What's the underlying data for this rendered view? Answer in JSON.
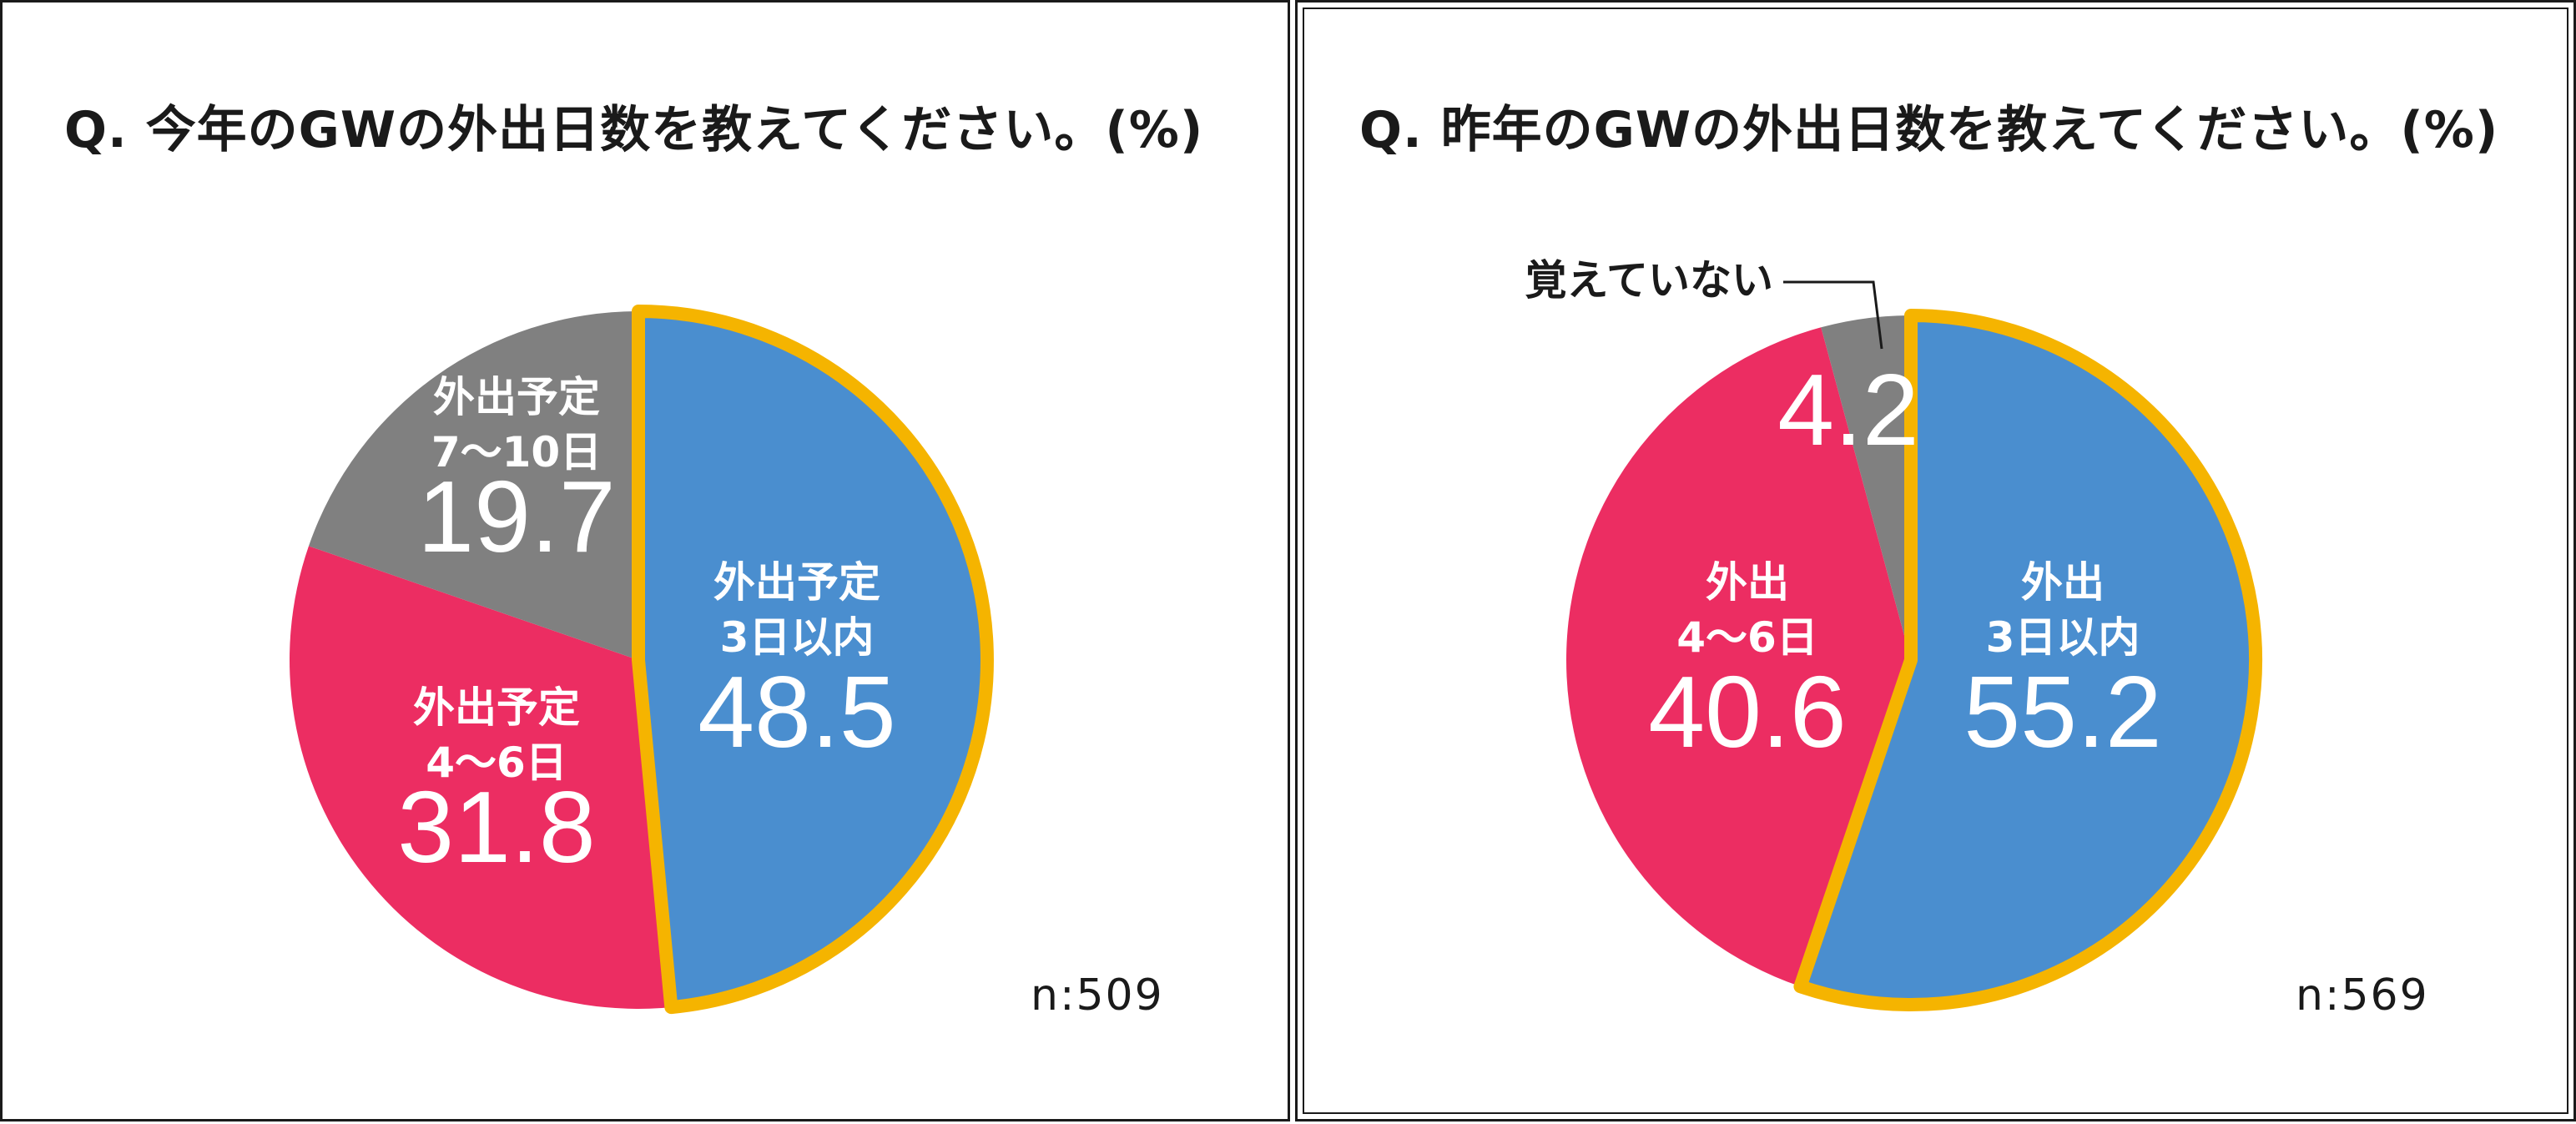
{
  "chart_data": [
    {
      "type": "pie",
      "title": "Q. 今年のGWの外出日数を教えてください。(%)",
      "n_label": "n:509",
      "highlight_color": "#F5B400",
      "slices": [
        {
          "label_lines": [
            "外出予定",
            "3日以内"
          ],
          "value": 48.5,
          "value_label": "48.5",
          "color": "#4A8ECF",
          "highlighted": true
        },
        {
          "label_lines": [
            "外出予定",
            "4～6日"
          ],
          "value": 31.8,
          "value_label": "31.8",
          "color": "#EC2D62",
          "highlighted": false
        },
        {
          "label_lines": [
            "外出予定",
            "7～10日"
          ],
          "value": 19.7,
          "value_label": "19.7",
          "color": "#808080",
          "highlighted": false
        }
      ]
    },
    {
      "type": "pie",
      "title": "Q. 昨年のGWの外出日数を教えてください。(%)",
      "n_label": "n:569",
      "highlight_color": "#F5B400",
      "slices": [
        {
          "label_lines": [
            "外出",
            "3日以内"
          ],
          "value": 55.2,
          "value_label": "55.2",
          "color": "#4A8ECF",
          "highlighted": true
        },
        {
          "label_lines": [
            "外出",
            "4～6日"
          ],
          "value": 40.6,
          "value_label": "40.6",
          "color": "#EC2D62",
          "highlighted": false
        },
        {
          "label_lines": [],
          "value": 4.2,
          "value_label": "4.2",
          "color": "#808080",
          "highlighted": false,
          "callout": "覚えていない"
        }
      ]
    }
  ]
}
